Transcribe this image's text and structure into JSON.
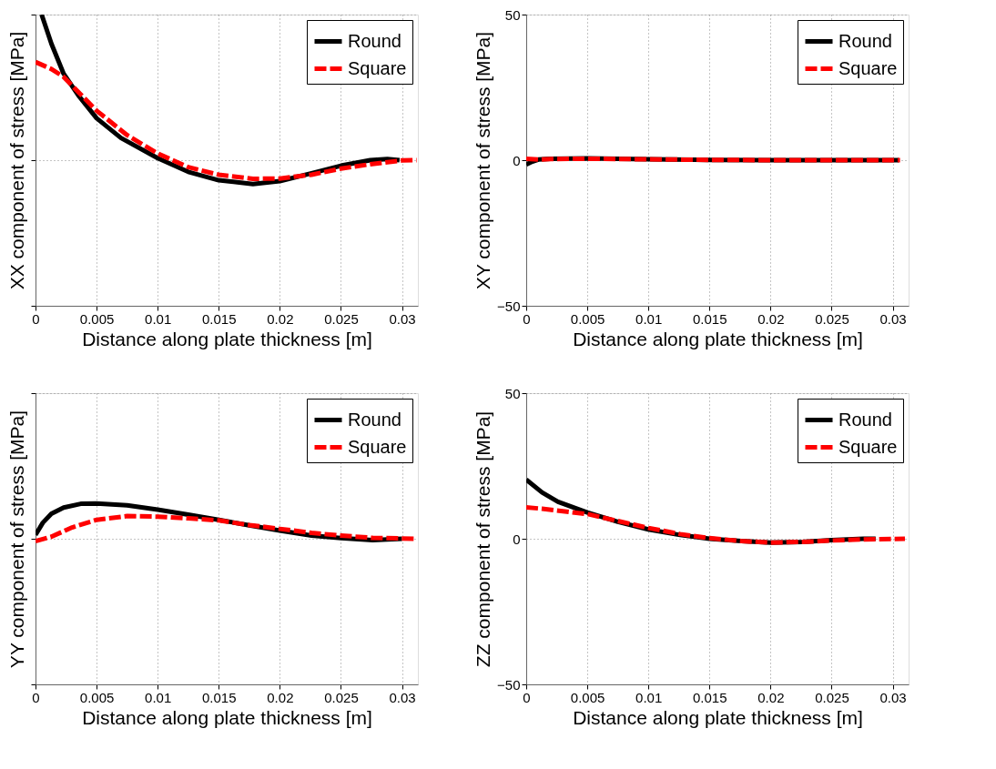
{
  "chart_data": [
    {
      "type": "line",
      "xlabel": "Distance along plate thickness [m]",
      "ylabel": "XX component of stress [MPa]",
      "xlim": [
        0,
        0.0313
      ],
      "ylim": [
        -50,
        50
      ],
      "xticks": [
        0,
        0.005,
        0.01,
        0.015,
        0.02,
        0.025,
        0.03
      ],
      "yticks": [
        -50,
        0,
        50
      ],
      "grid": true,
      "legend": "top right",
      "tick_labels": "x",
      "series": [
        {
          "name": "Round",
          "color": "#000000",
          "line_style": "solid",
          "x": [
            0.0005,
            0.0013,
            0.0023,
            0.0035,
            0.005,
            0.007,
            0.01,
            0.0125,
            0.015,
            0.0178,
            0.02,
            0.0226,
            0.025,
            0.0274,
            0.0288,
            0.0298
          ],
          "values": [
            50,
            40,
            29.7,
            22.3,
            14.4,
            7.6,
            0.7,
            -4,
            -6.9,
            -8.2,
            -7.2,
            -4.5,
            -1.9,
            0,
            0.4,
            0
          ]
        },
        {
          "name": "Square",
          "color": "#ff0000",
          "line_style": "dashed",
          "x": [
            0,
            0.0013,
            0.0023,
            0.005,
            0.0075,
            0.01,
            0.0125,
            0.015,
            0.0178,
            0.02,
            0.0226,
            0.025,
            0.0274,
            0.03,
            0.0312
          ],
          "values": [
            33.7,
            31.3,
            28.6,
            17,
            8.6,
            2.3,
            -2.4,
            -5,
            -6.4,
            -6.3,
            -5,
            -2.9,
            -1.4,
            -0.1,
            0
          ]
        }
      ]
    },
    {
      "type": "line",
      "xlabel": "Distance along plate thickness [m]",
      "ylabel": "XY component of stress [MPa]",
      "xlim": [
        0,
        0.0313
      ],
      "ylim": [
        -50,
        50
      ],
      "xticks": [
        0,
        0.005,
        0.01,
        0.015,
        0.02,
        0.025,
        0.03
      ],
      "yticks": [
        -50,
        0,
        50
      ],
      "grid": true,
      "legend": "top right",
      "series": [
        {
          "name": "Round",
          "color": "#000000",
          "line_style": "solid",
          "x": [
            0,
            0.0005,
            0.001,
            0.002,
            0.005,
            0.01,
            0.015,
            0.02,
            0.025,
            0.0305
          ],
          "values": [
            -1.5,
            -0.5,
            0.2,
            0.5,
            0.6,
            0.3,
            0.1,
            0,
            0,
            0
          ]
        },
        {
          "name": "Square",
          "color": "#ff0000",
          "line_style": "dashed",
          "x": [
            0,
            0.001,
            0.002,
            0.005,
            0.01,
            0.015,
            0.02,
            0.025,
            0.0306
          ],
          "values": [
            0.5,
            0.2,
            0.4,
            0.5,
            0.3,
            0.1,
            0,
            0,
            0
          ]
        }
      ]
    },
    {
      "type": "line",
      "xlabel": "Distance along plate thickness [m]",
      "ylabel": "YY component of stress [MPa]",
      "xlim": [
        0,
        0.0313
      ],
      "ylim": [
        -50,
        50
      ],
      "xticks": [
        0,
        0.005,
        0.01,
        0.015,
        0.02,
        0.025,
        0.03
      ],
      "yticks": [
        -50,
        0,
        50
      ],
      "grid": true,
      "legend": "top right",
      "tick_labels": "x",
      "series": [
        {
          "name": "Round",
          "color": "#000000",
          "line_style": "solid",
          "x": [
            0,
            0.0006,
            0.0013,
            0.0023,
            0.0037,
            0.005,
            0.0075,
            0.01,
            0.0125,
            0.015,
            0.0175,
            0.02,
            0.0226,
            0.025,
            0.0276,
            0.03
          ],
          "values": [
            1.3,
            5.5,
            8.6,
            10.7,
            12,
            12.1,
            11.5,
            10,
            8.3,
            6.5,
            4.6,
            2.8,
            1.1,
            0.2,
            -0.5,
            0
          ]
        },
        {
          "name": "Square",
          "color": "#ff0000",
          "line_style": "dashed",
          "x": [
            0,
            0.0013,
            0.003,
            0.005,
            0.0075,
            0.01,
            0.0125,
            0.015,
            0.0175,
            0.02,
            0.0226,
            0.025,
            0.0276,
            0.0312
          ],
          "values": [
            -0.8,
            0.7,
            3.9,
            6.5,
            7.8,
            7.6,
            7,
            6.3,
            4.7,
            3.4,
            2,
            1.1,
            0.3,
            0
          ]
        }
      ]
    },
    {
      "type": "line",
      "xlabel": "Distance along plate thickness [m]",
      "ylabel": "ZZ component of stress [MPa]",
      "xlim": [
        0,
        0.0313
      ],
      "ylim": [
        -50,
        50
      ],
      "xticks": [
        0,
        0.005,
        0.01,
        0.015,
        0.02,
        0.025,
        0.03
      ],
      "yticks": [
        -50,
        0,
        50
      ],
      "grid": true,
      "legend": "top right",
      "series": [
        {
          "name": "Round",
          "color": "#000000",
          "line_style": "solid",
          "x": [
            0,
            0.0013,
            0.0026,
            0.005,
            0.0075,
            0.01,
            0.0126,
            0.015,
            0.0176,
            0.02,
            0.0226,
            0.025,
            0.0276,
            0.0286
          ],
          "values": [
            20.3,
            15.9,
            12.7,
            9,
            5.8,
            3.2,
            1.3,
            0,
            -0.8,
            -1.3,
            -1.1,
            -0.5,
            0,
            0
          ]
        },
        {
          "name": "Square",
          "color": "#ff0000",
          "line_style": "dashed",
          "x": [
            0,
            0.0013,
            0.005,
            0.0075,
            0.01,
            0.0126,
            0.015,
            0.0176,
            0.02,
            0.0226,
            0.025,
            0.0276,
            0.031
          ],
          "values": [
            10.8,
            10.3,
            8.5,
            6.1,
            3.7,
            1.6,
            0.2,
            -0.8,
            -1.3,
            -1.1,
            -0.6,
            -0.2,
            0
          ]
        }
      ]
    }
  ]
}
